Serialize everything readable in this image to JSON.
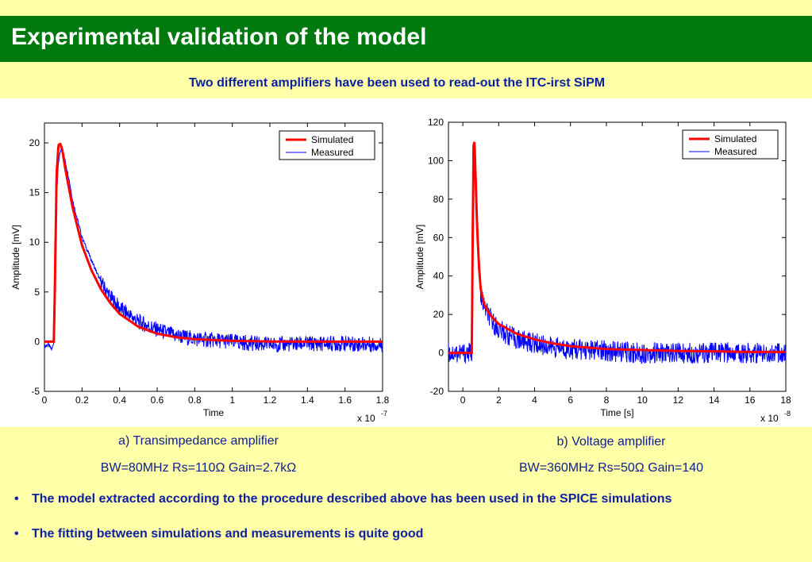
{
  "header": {
    "title": "Experimental validation of the model"
  },
  "subtitle": "Two different amplifiers have been used to read-out the ITC-irst SiPM",
  "colors": {
    "background": "#ffffa8",
    "title_bar": "#007a0f",
    "simulated": "#ff0000",
    "measured": "#0000ff"
  },
  "captions": {
    "a_title": "a)    Transimpedance amplifier",
    "a_params": "BW=80MHz Rs=110Ω Gain=2.7kΩ",
    "b_title": "b)    Voltage amplifier",
    "b_params": "BW=360MHz Rs=50Ω Gain=140"
  },
  "bullets": [
    "The model extracted according to the procedure described above has been used in the SPICE simulations",
    "The fitting between simulations and measurements is quite good"
  ],
  "chart_data": [
    {
      "type": "line",
      "xlabel": "Time",
      "ylabel": "Amplitude [mV]",
      "x_multiplier": "x 10",
      "x_exponent": "-7",
      "xlim": [
        0,
        1.8
      ],
      "ylim": [
        -5,
        22
      ],
      "xticks": [
        "0",
        "0.2",
        "0.4",
        "0.6",
        "0.8",
        "1",
        "1.2",
        "1.4",
        "1.6",
        "1.8"
      ],
      "yticks": [
        "-5",
        "0",
        "5",
        "10",
        "15",
        "20"
      ],
      "grid": false,
      "legend_position": "top-right",
      "series": [
        {
          "name": "Simulated",
          "x": [
            0,
            0.05,
            0.055,
            0.065,
            0.075,
            0.085,
            0.095,
            0.11,
            0.13,
            0.15,
            0.2,
            0.25,
            0.3,
            0.35,
            0.4,
            0.5,
            0.6,
            0.7,
            0.8,
            1.0,
            1.2,
            1.4,
            1.6,
            1.8
          ],
          "values": [
            0,
            0,
            5,
            17,
            19.8,
            19.9,
            19.3,
            17.5,
            15.5,
            13.5,
            9.7,
            7.2,
            5.3,
            3.9,
            2.8,
            1.5,
            0.8,
            0.45,
            0.25,
            0.08,
            0.02,
            0,
            0,
            0
          ]
        },
        {
          "name": "Measured",
          "x": [
            0,
            0.02,
            0.04,
            0.05,
            0.055,
            0.065,
            0.075,
            0.085,
            0.095,
            0.11,
            0.13,
            0.15,
            0.2,
            0.25,
            0.3,
            0.35,
            0.4,
            0.5,
            0.6,
            0.7,
            0.8,
            1.0,
            1.2,
            1.4,
            1.6,
            1.8
          ],
          "values": [
            -0.5,
            -0.3,
            -0.8,
            0,
            4,
            15,
            18,
            19.2,
            19.5,
            18.2,
            16.5,
            14.2,
            10.5,
            8.2,
            6,
            4.5,
            3.4,
            2,
            1.2,
            0.6,
            0.3,
            0,
            -0.3,
            -0.2,
            -0.2,
            -0.3
          ]
        }
      ]
    },
    {
      "type": "line",
      "xlabel": "Time [s]",
      "ylabel": "Amplitude [mV]",
      "x_multiplier": "x 10",
      "x_exponent": "-8",
      "xlim": [
        -0.8,
        18
      ],
      "ylim": [
        -20,
        120
      ],
      "xticks": [
        "0",
        "2",
        "4",
        "6",
        "8",
        "10",
        "12",
        "14",
        "16",
        "18"
      ],
      "yticks": [
        "-20",
        "0",
        "20",
        "40",
        "60",
        "80",
        "100",
        "120"
      ],
      "grid": false,
      "legend_position": "top-right",
      "series": [
        {
          "name": "Simulated",
          "x": [
            -0.8,
            0.5,
            0.55,
            0.6,
            0.65,
            0.7,
            0.8,
            0.9,
            1.0,
            1.2,
            1.5,
            2,
            3,
            4,
            5,
            6,
            8,
            10,
            12,
            14,
            16,
            18
          ],
          "values": [
            0,
            0,
            60,
            108,
            110,
            95,
            65,
            45,
            33,
            25,
            20,
            15,
            10,
            7,
            5,
            3.5,
            2,
            1.5,
            1,
            0.8,
            0.5,
            0.5
          ]
        },
        {
          "name": "Measured",
          "x": [
            -0.8,
            0.5,
            0.55,
            0.6,
            0.65,
            0.7,
            0.8,
            0.9,
            1.0,
            1.2,
            1.5,
            2,
            3,
            4,
            5,
            6,
            8,
            10,
            12,
            14,
            16,
            18
          ],
          "values": [
            0,
            0,
            55,
            105,
            109,
            92,
            60,
            42,
            30,
            24,
            18,
            12,
            7,
            5,
            3,
            2,
            1,
            0,
            0,
            0,
            0,
            0
          ]
        }
      ]
    }
  ]
}
